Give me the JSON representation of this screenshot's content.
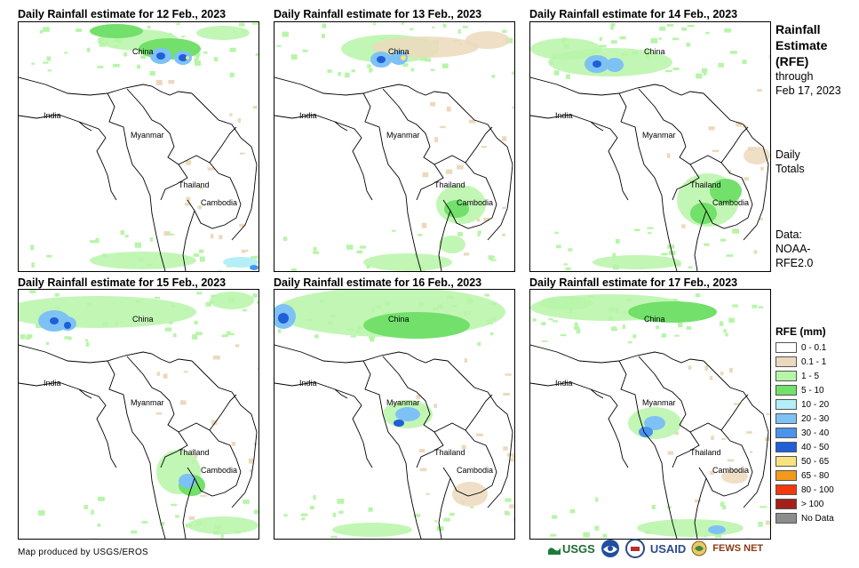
{
  "panels": [
    {
      "title": "Daily Rainfall estimate for 12 Feb., 2023"
    },
    {
      "title": "Daily Rainfall estimate for 13 Feb., 2023"
    },
    {
      "title": "Daily Rainfall estimate for 14 Feb., 2023"
    },
    {
      "title": "Daily Rainfall estimate for 15 Feb., 2023"
    },
    {
      "title": "Daily Rainfall estimate for 16 Feb., 2023"
    },
    {
      "title": "Daily Rainfall estimate for 17 Feb., 2023"
    }
  ],
  "map_labels": {
    "china": "China",
    "india": "India",
    "myanmar": "Myanmar",
    "thailand": "Thailand",
    "cambodia": "Cambodia"
  },
  "sidebar": {
    "title_1": "Rainfall",
    "title_2": "Estimate",
    "title_3": "(RFE)",
    "through": "through",
    "date": "Feb 17, 2023",
    "daily": "Daily",
    "totals": "Totals",
    "data_label": "Data:",
    "data_src_1": "NOAA-",
    "data_src_2": "RFE2.0"
  },
  "legend": {
    "title": "RFE (mm)",
    "items": [
      {
        "label": "0 - 0.1",
        "color": "#ffffff"
      },
      {
        "label": "0.1 - 1",
        "color": "#ecd9bd"
      },
      {
        "label": "1 - 5",
        "color": "#b7f5a8"
      },
      {
        "label": "5 - 10",
        "color": "#72e06a"
      },
      {
        "label": "10 - 20",
        "color": "#b4eef7"
      },
      {
        "label": "20 - 30",
        "color": "#7ec2f5"
      },
      {
        "label": "30 - 40",
        "color": "#4a94ee"
      },
      {
        "label": "40 - 50",
        "color": "#1f5fd8"
      },
      {
        "label": "50 - 65",
        "color": "#f7e27e"
      },
      {
        "label": "65 - 80",
        "color": "#f39a1a"
      },
      {
        "label": "80 - 100",
        "color": "#f2380f"
      },
      {
        "label": "> 100",
        "color": "#a3201b"
      },
      {
        "label": "No Data",
        "color": "#8c8c8c"
      }
    ]
  },
  "credit": "Map produced by USGS/EROS",
  "logos": {
    "usgs": "USGS",
    "usaid": "USAID",
    "fews": "FEWS NET"
  }
}
